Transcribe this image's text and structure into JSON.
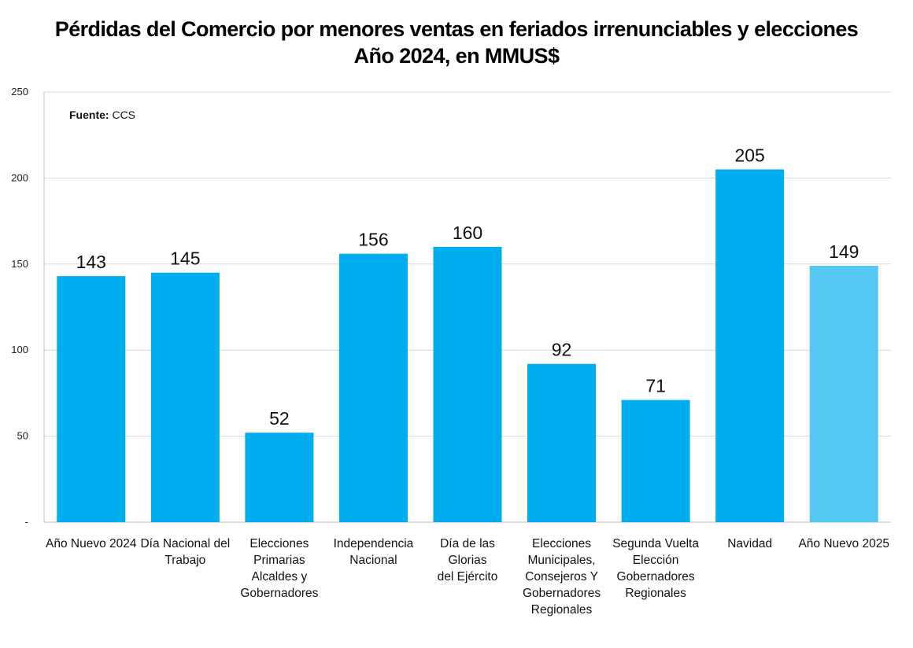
{
  "chart_data": {
    "type": "bar",
    "title": "Pérdidas del Comercio por menores ventas en feriados irrenunciables y elecciones",
    "subtitle": "Año 2024, en MMUS$",
    "source_label": "Fuente:",
    "source_value": "CCS",
    "categories": [
      "Año Nuevo 2024",
      "Día Nacional del Trabajo",
      "Elecciones Primarias Alcaldes y Gobernadores",
      "Independencia Nacional",
      "Día de las Glorias del Ejército",
      "Elecciones Municipales, Consejeros Y Gobernadores Regionales",
      "Segunda Vuelta Elección Gobernadores Regionales",
      "Navidad",
      "Año Nuevo 2025"
    ],
    "category_lines": [
      [
        "Año Nuevo 2024"
      ],
      [
        "Día Nacional del",
        "Trabajo"
      ],
      [
        "Elecciones",
        "Primarias",
        "Alcaldes y",
        "Gobernadores"
      ],
      [
        "Independencia",
        "Nacional"
      ],
      [
        "Día de las Glorias",
        "del Ejército"
      ],
      [
        "Elecciones",
        "Municipales,",
        "Consejeros Y",
        "Gobernadores",
        "Regionales"
      ],
      [
        "Segunda Vuelta",
        "Elección",
        "Gobernadores",
        "Regionales"
      ],
      [
        "Navidad"
      ],
      [
        "Año Nuevo 2025"
      ]
    ],
    "values": [
      143,
      145,
      52,
      156,
      160,
      92,
      71,
      205,
      149
    ],
    "colors": [
      "#00aeef",
      "#00aeef",
      "#00aeef",
      "#00aeef",
      "#00aeef",
      "#00aeef",
      "#00aeef",
      "#00aeef",
      "#55c8f3"
    ],
    "ylim": [
      0,
      250
    ],
    "yticks": [
      0,
      50,
      100,
      150,
      200,
      250
    ],
    "ytick_labels": [
      "-",
      "50",
      "100",
      "150",
      "200",
      "250"
    ],
    "grid": true,
    "gridline_color": "#d9d9d9",
    "axis_color": "#bfbfbf"
  }
}
